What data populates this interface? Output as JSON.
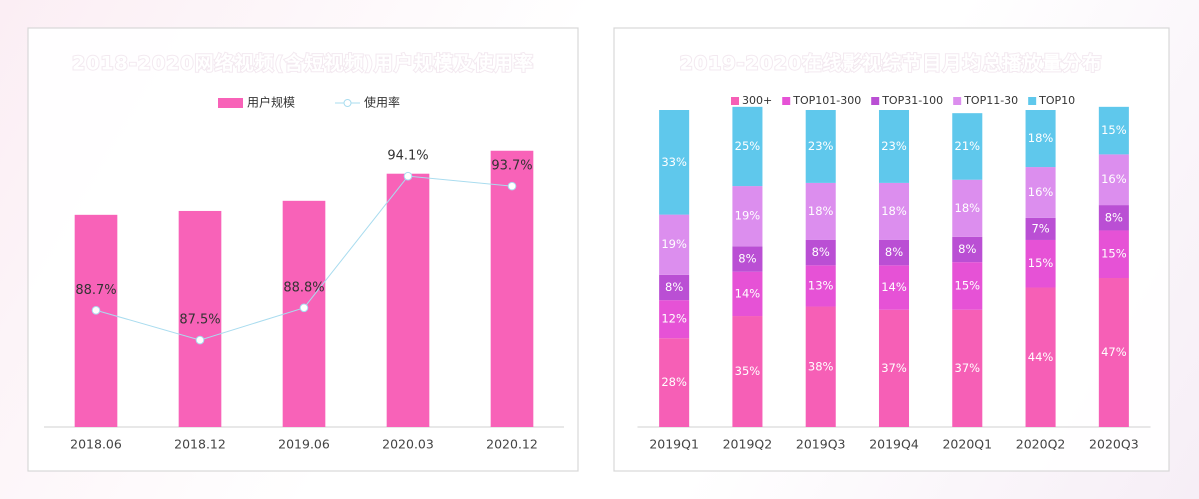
{
  "chart_data": [
    {
      "type": "combo",
      "title": "2018-2020网络视频(含短视频)用户规模及使用率",
      "categories": [
        "2018.06",
        "2018.12",
        "2019.06",
        "2020.03",
        "2020.12"
      ],
      "series": [
        {
          "name": "用户规模",
          "kind": "bar",
          "color": "#f862b8",
          "values": [
            7.12,
            7.25,
            7.59,
            8.5,
            9.27
          ]
        },
        {
          "name": "使用率",
          "kind": "line",
          "axis": "y2",
          "color": "#a9dcef",
          "values": [
            88.7,
            87.5,
            88.8,
            94.1,
            93.7
          ],
          "value_labels": [
            "88.7%",
            "87.5%",
            "88.8%",
            "94.1%",
            "93.7%"
          ]
        }
      ],
      "ylim": [
        0,
        10
      ],
      "y2lim": [
        84,
        96
      ],
      "legend": "top"
    },
    {
      "type": "stacked_bar",
      "title": "2019-2020在线影视综节目月均总播放量分布",
      "categories": [
        "2019Q1",
        "2019Q2",
        "2019Q3",
        "2019Q4",
        "2020Q1",
        "2020Q2",
        "2020Q3"
      ],
      "series": [
        {
          "name": "300+",
          "color": "#f65fb6",
          "values": [
            28,
            35,
            38,
            37,
            37,
            44,
            47
          ],
          "value_labels": [
            "28%",
            "35%",
            "38%",
            "37%",
            "37%",
            "44%",
            "47%"
          ]
        },
        {
          "name": "TOP101-300",
          "color": "#e652d6",
          "values": [
            12,
            14,
            13,
            14,
            15,
            15,
            15
          ],
          "value_labels": [
            "12%",
            "14%",
            "13%",
            "14%",
            "15%",
            "15%",
            "15%"
          ]
        },
        {
          "name": "TOP31-100",
          "color": "#ba4fd4",
          "values": [
            8,
            8,
            8,
            8,
            8,
            7,
            8
          ],
          "value_labels": [
            "8%",
            "8%",
            "8%",
            "8%",
            "8%",
            "7%",
            "8%"
          ]
        },
        {
          "name": "TOP11-30",
          "color": "#dc8eee",
          "values": [
            19,
            19,
            18,
            18,
            18,
            16,
            16
          ],
          "value_labels": [
            "19%",
            "19%",
            "18%",
            "18%",
            "18%",
            "16%",
            "16%"
          ]
        },
        {
          "name": "TOP10",
          "color": "#5fc8ec",
          "values": [
            33,
            25,
            23,
            23,
            21,
            18,
            15
          ],
          "value_labels": [
            "33%",
            "25%",
            "23%",
            "23%",
            "21%",
            "18%",
            "15%"
          ]
        }
      ],
      "ylim": [
        0,
        100
      ],
      "legend": "top"
    }
  ]
}
